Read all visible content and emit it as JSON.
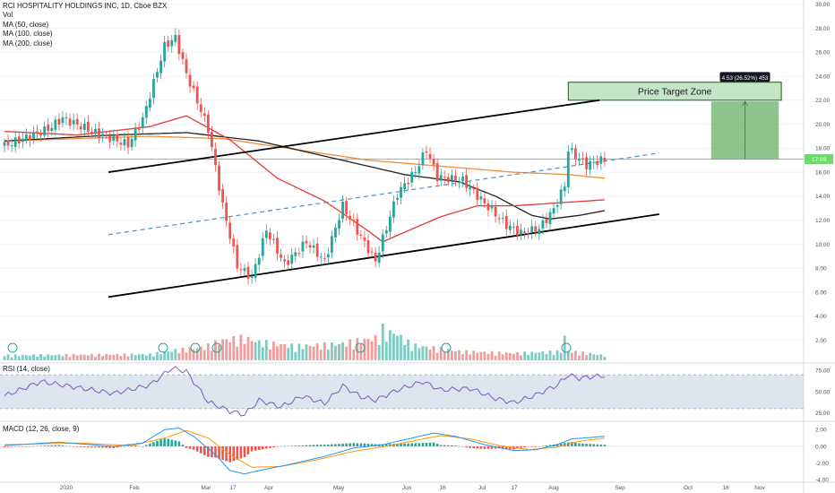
{
  "header": {
    "title": "RCI HOSPITALITY HOLDINGS INC, 1D, Cboe BZX",
    "legend": [
      "Vol",
      "MA (50, close)",
      "MA (100, close)",
      "MA (200, close)"
    ]
  },
  "rsi_title": "RSI (14, close)",
  "macd_title": "MACD (12, 26, close, 9)",
  "price_target": {
    "label": "Price Target Zone",
    "measure_label": "4.53 (26.52%) 453"
  },
  "last_price_label": "17.09",
  "colors": {
    "up": "#26a69a",
    "down": "#ef5350",
    "vol_up": "#7fcbc3",
    "vol_down": "#f29c9a",
    "ma50": "#e53935",
    "ma100": "#212121",
    "ma200": "#ef8d3c",
    "channel": "#000000",
    "midline": "#4a90c8",
    "last_price_line": "#6fd86f",
    "rsi_line": "#7e57c2",
    "macd_line": "#2196f3",
    "signal_line": "#ff9800",
    "rsi_band": "#d1dce8",
    "target_box": "#5fae60"
  },
  "chart_data": [
    {
      "type": "candlestick",
      "title": "RCI HOSPITALITY HOLDINGS INC, 1D, Cboe BZX",
      "x_ticks": [
        "2020",
        "Feb",
        "Mar",
        "17",
        "Apr",
        "May",
        "Jun",
        "16",
        "Jul",
        "17",
        "Aug",
        "Sep",
        "Oct",
        "16",
        "Nov"
      ],
      "y_ticks": [
        "30.00",
        "28.00",
        "26.00",
        "24.00",
        "22.00",
        "20.00",
        "18.00",
        "16.00",
        "14.00",
        "12.00",
        "10.00",
        "8.00",
        "6.00",
        "4.00",
        "2.00"
      ],
      "ylim": [
        0.1,
        30.2
      ],
      "price_keyframes": [
        {
          "day": 0,
          "price": 18.2
        },
        {
          "day": 12,
          "price": 19.6
        },
        {
          "day": 16,
          "price": 20.5
        },
        {
          "day": 25,
          "price": 19.3
        },
        {
          "day": 34,
          "price": 18.3
        },
        {
          "day": 38,
          "price": 20.4
        },
        {
          "day": 44,
          "price": 26.5
        },
        {
          "day": 47,
          "price": 27.2
        },
        {
          "day": 50,
          "price": 24.2
        },
        {
          "day": 56,
          "price": 19.6
        },
        {
          "day": 60,
          "price": 13.2
        },
        {
          "day": 64,
          "price": 8.2
        },
        {
          "day": 68,
          "price": 7.2
        },
        {
          "day": 72,
          "price": 11.2
        },
        {
          "day": 77,
          "price": 8.3
        },
        {
          "day": 83,
          "price": 10.2
        },
        {
          "day": 88,
          "price": 8.6
        },
        {
          "day": 93,
          "price": 13.2
        },
        {
          "day": 98,
          "price": 10.6
        },
        {
          "day": 102,
          "price": 8.6
        },
        {
          "day": 108,
          "price": 14.2
        },
        {
          "day": 113,
          "price": 16.1
        },
        {
          "day": 116,
          "price": 17.9
        },
        {
          "day": 119,
          "price": 15.6
        },
        {
          "day": 126,
          "price": 15.3
        },
        {
          "day": 132,
          "price": 13.4
        },
        {
          "day": 138,
          "price": 11.6
        },
        {
          "day": 142,
          "price": 10.9
        },
        {
          "day": 147,
          "price": 11.3
        },
        {
          "day": 151,
          "price": 12.9
        },
        {
          "day": 154,
          "price": 14.9
        },
        {
          "day": 155,
          "price": 17.9
        },
        {
          "day": 160,
          "price": 16.6
        },
        {
          "day": 165,
          "price": 17.09
        }
      ],
      "channel": {
        "upper": [
          {
            "date": "2020-02-11",
            "price": 16.0
          },
          {
            "date": "2020-08-18",
            "price": 22.0
          }
        ],
        "lower": [
          {
            "date": "2020-02-11",
            "price": 5.6
          },
          {
            "date": "2020-09-10",
            "price": 12.5
          }
        ],
        "midline": [
          {
            "date": "2020-02-11",
            "price": 10.8
          },
          {
            "date": "2020-09-10",
            "price": 17.6
          }
        ]
      },
      "ma_keyframes": {
        "ma50": [
          {
            "day": 0,
            "price": 19.4
          },
          {
            "day": 20,
            "price": 19.1
          },
          {
            "day": 40,
            "price": 19.8
          },
          {
            "day": 50,
            "price": 20.7
          },
          {
            "day": 62,
            "price": 18.7
          },
          {
            "day": 75,
            "price": 15.5
          },
          {
            "day": 88,
            "price": 13.6
          },
          {
            "day": 100,
            "price": 11.1
          },
          {
            "day": 104,
            "price": 10.2
          },
          {
            "day": 110,
            "price": 11.0
          },
          {
            "day": 120,
            "price": 12.3
          },
          {
            "day": 130,
            "price": 13.2
          },
          {
            "day": 140,
            "price": 13.2
          },
          {
            "day": 150,
            "price": 13.4
          },
          {
            "day": 160,
            "price": 13.6
          },
          {
            "day": 165,
            "price": 13.7
          }
        ],
        "ma100": [
          {
            "day": 0,
            "price": 18.6
          },
          {
            "day": 30,
            "price": 19.1
          },
          {
            "day": 50,
            "price": 19.3
          },
          {
            "day": 70,
            "price": 18.6
          },
          {
            "day": 90,
            "price": 17.2
          },
          {
            "day": 110,
            "price": 15.8
          },
          {
            "day": 125,
            "price": 15.2
          },
          {
            "day": 135,
            "price": 14.0
          },
          {
            "day": 145,
            "price": 12.4
          },
          {
            "day": 150,
            "price": 12.1
          },
          {
            "day": 158,
            "price": 12.4
          },
          {
            "day": 165,
            "price": 12.8
          }
        ],
        "ma200": [
          {
            "day": 0,
            "price": 18.6
          },
          {
            "day": 40,
            "price": 19.0
          },
          {
            "day": 60,
            "price": 18.8
          },
          {
            "day": 80,
            "price": 17.9
          },
          {
            "day": 100,
            "price": 17.0
          },
          {
            "day": 120,
            "price": 16.5
          },
          {
            "day": 140,
            "price": 16.0
          },
          {
            "day": 155,
            "price": 15.8
          },
          {
            "day": 165,
            "price": 15.5
          }
        ]
      },
      "last_price": 17.09,
      "annotations": [
        "Price Target Zone",
        "4.53 (26.52%) 453"
      ]
    },
    {
      "type": "bar",
      "title": "Vol",
      "note": "volume histogram overlaid at bottom of price pane; relative heights only",
      "volume_keyframes": [
        {
          "day": 0,
          "value": 1.0
        },
        {
          "day": 40,
          "value": 1.2
        },
        {
          "day": 47,
          "value": 2.0
        },
        {
          "day": 55,
          "value": 2.6
        },
        {
          "day": 60,
          "value": 4.0
        },
        {
          "day": 66,
          "value": 4.4
        },
        {
          "day": 70,
          "value": 3.6
        },
        {
          "day": 80,
          "value": 2.8
        },
        {
          "day": 92,
          "value": 3.2
        },
        {
          "day": 102,
          "value": 4.4
        },
        {
          "day": 107,
          "value": 5.6
        },
        {
          "day": 112,
          "value": 3.0
        },
        {
          "day": 125,
          "value": 1.8
        },
        {
          "day": 140,
          "value": 1.4
        },
        {
          "day": 155,
          "value": 1.8
        },
        {
          "day": 165,
          "value": 1.0
        }
      ],
      "volume_spikes": [
        {
          "day": 104,
          "value": 8.4
        },
        {
          "day": 154,
          "value": 5.6
        }
      ]
    },
    {
      "type": "line",
      "title": "RSI (14, close)",
      "y_ticks": [
        "75.00",
        "50.00",
        "25.00"
      ],
      "ylim": [
        15,
        85
      ],
      "band": [
        30,
        70
      ],
      "rsi_keyframes": [
        {
          "day": 0,
          "value": 45
        },
        {
          "day": 10,
          "value": 62
        },
        {
          "day": 20,
          "value": 55
        },
        {
          "day": 30,
          "value": 48
        },
        {
          "day": 40,
          "value": 58
        },
        {
          "day": 46,
          "value": 78
        },
        {
          "day": 50,
          "value": 74
        },
        {
          "day": 56,
          "value": 38
        },
        {
          "day": 62,
          "value": 27
        },
        {
          "day": 66,
          "value": 23
        },
        {
          "day": 70,
          "value": 40
        },
        {
          "day": 76,
          "value": 32
        },
        {
          "day": 82,
          "value": 45
        },
        {
          "day": 88,
          "value": 36
        },
        {
          "day": 93,
          "value": 57
        },
        {
          "day": 98,
          "value": 44
        },
        {
          "day": 102,
          "value": 40
        },
        {
          "day": 108,
          "value": 52
        },
        {
          "day": 115,
          "value": 62
        },
        {
          "day": 120,
          "value": 52
        },
        {
          "day": 128,
          "value": 54
        },
        {
          "day": 135,
          "value": 42
        },
        {
          "day": 140,
          "value": 37
        },
        {
          "day": 146,
          "value": 46
        },
        {
          "day": 152,
          "value": 58
        },
        {
          "day": 155,
          "value": 70
        },
        {
          "day": 158,
          "value": 66
        },
        {
          "day": 162,
          "value": 68
        },
        {
          "day": 165,
          "value": 69
        }
      ]
    },
    {
      "type": "line",
      "title": "MACD (12, 26, close, 9)",
      "y_ticks": [
        "2.00",
        "0.00",
        "-2.00",
        "-4.00"
      ],
      "ylim": [
        -4.3,
        2.9
      ],
      "macd_keyframes": [
        {
          "day": 0,
          "value": 0.1
        },
        {
          "day": 15,
          "value": 0.5
        },
        {
          "day": 30,
          "value": 0.0
        },
        {
          "day": 38,
          "value": 0.4
        },
        {
          "day": 44,
          "value": 2.0
        },
        {
          "day": 48,
          "value": 2.2
        },
        {
          "day": 52,
          "value": 1.2
        },
        {
          "day": 58,
          "value": -1.0
        },
        {
          "day": 62,
          "value": -2.9
        },
        {
          "day": 66,
          "value": -3.3
        },
        {
          "day": 70,
          "value": -2.9
        },
        {
          "day": 78,
          "value": -2.2
        },
        {
          "day": 88,
          "value": -1.2
        },
        {
          "day": 96,
          "value": -0.2
        },
        {
          "day": 104,
          "value": 0.2
        },
        {
          "day": 112,
          "value": 1.0
        },
        {
          "day": 118,
          "value": 1.6
        },
        {
          "day": 124,
          "value": 1.2
        },
        {
          "day": 132,
          "value": 0.2
        },
        {
          "day": 140,
          "value": -0.5
        },
        {
          "day": 146,
          "value": -0.4
        },
        {
          "day": 152,
          "value": 0.2
        },
        {
          "day": 156,
          "value": 0.9
        },
        {
          "day": 165,
          "value": 1.2
        }
      ],
      "signal_keyframes": [
        {
          "day": 0,
          "value": 0.2
        },
        {
          "day": 20,
          "value": 0.4
        },
        {
          "day": 35,
          "value": 0.1
        },
        {
          "day": 44,
          "value": 1.0
        },
        {
          "day": 50,
          "value": 1.9
        },
        {
          "day": 56,
          "value": 1.0
        },
        {
          "day": 62,
          "value": -1.0
        },
        {
          "day": 68,
          "value": -2.5
        },
        {
          "day": 76,
          "value": -2.4
        },
        {
          "day": 86,
          "value": -1.6
        },
        {
          "day": 96,
          "value": -0.6
        },
        {
          "day": 106,
          "value": 0.1
        },
        {
          "day": 114,
          "value": 0.8
        },
        {
          "day": 120,
          "value": 1.3
        },
        {
          "day": 128,
          "value": 0.9
        },
        {
          "day": 136,
          "value": 0.1
        },
        {
          "day": 144,
          "value": -0.4
        },
        {
          "day": 152,
          "value": -0.1
        },
        {
          "day": 158,
          "value": 0.6
        },
        {
          "day": 165,
          "value": 1.0
        }
      ]
    }
  ]
}
